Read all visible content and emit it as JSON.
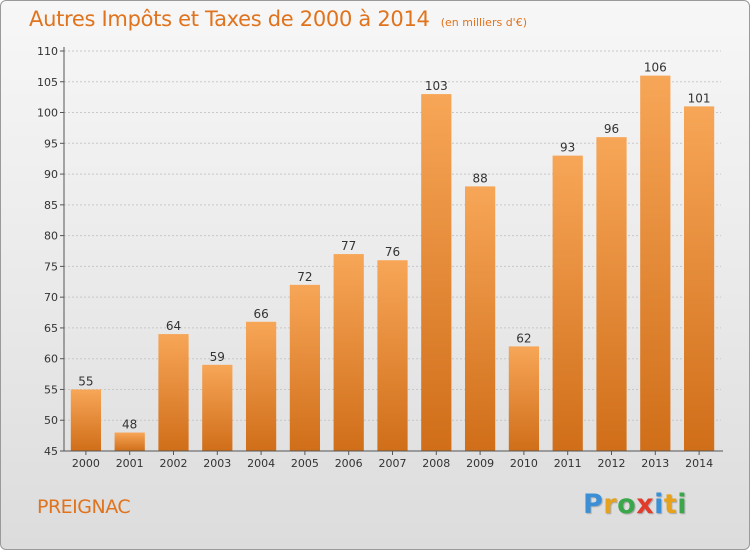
{
  "title": "Autres Impôts et Taxes de 2000 à 2014",
  "subtitle": "(en milliers d'€)",
  "commune": "PREIGNAC",
  "brand": {
    "letters": [
      "P",
      "r",
      "o",
      "x",
      "i",
      "t",
      "i"
    ],
    "colors": [
      "#3a8fd6",
      "#e6a21c",
      "#3aa84a",
      "#e23b2c",
      "#3a8fd6",
      "#e6a21c",
      "#3aa84a"
    ]
  },
  "colors": {
    "bar_top": "#f7a657",
    "bar_bottom": "#d06e19",
    "title": "#e0731d",
    "axis": "#555555",
    "grid": "#c8c8c8"
  },
  "chart_data": {
    "type": "bar",
    "title": "Autres Impôts et Taxes de 2000 à 2014",
    "subtitle": "(en milliers d'€)",
    "categories": [
      "2000",
      "2001",
      "2002",
      "2003",
      "2004",
      "2005",
      "2006",
      "2007",
      "2008",
      "2009",
      "2010",
      "2011",
      "2012",
      "2013",
      "2014"
    ],
    "values": [
      55,
      48,
      64,
      59,
      66,
      72,
      77,
      76,
      103,
      88,
      62,
      93,
      96,
      106,
      101
    ],
    "data_labels": [
      "55",
      "48",
      "64",
      "59",
      "66",
      "72",
      "77",
      "76",
      "103",
      "88",
      "62",
      "93",
      "96",
      "106",
      "101"
    ],
    "ylim": [
      45,
      110
    ],
    "yticks": [
      "45",
      "50",
      "55",
      "60",
      "65",
      "70",
      "75",
      "80",
      "85",
      "90",
      "95",
      "100",
      "105",
      "110"
    ],
    "xlabel": "",
    "ylabel": "",
    "grid": true,
    "legend": "none"
  }
}
